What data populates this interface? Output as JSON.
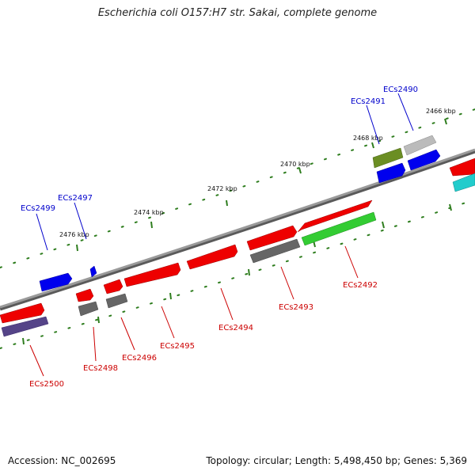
{
  "title": "Escherichia coli O157:H7 str. Sakai, complete genome",
  "footer": {
    "accession_label": "Accession:",
    "accession": "NC_002695",
    "topology_label": "Topology:",
    "topology": "circular",
    "length_label": "Length:",
    "length": "5,498,450 bp",
    "genes_label": "Genes:",
    "genes": "5,369"
  },
  "scale_labels": [
    "2466 kbp",
    "2468 kbp",
    "2470 kbp",
    "2472 kbp",
    "2474 kbp",
    "2476 kbp"
  ],
  "forward_gene_labels": [
    "ECs2490",
    "ECs2491",
    "ECs2497",
    "ECs2499"
  ],
  "reverse_gene_labels": [
    "ECs2492",
    "ECs2493",
    "ECs2494",
    "ECs2495",
    "ECs2496",
    "ECs2498",
    "ECs2500"
  ],
  "colors": {
    "backbone": "#888888",
    "scale_ticks": "#2e7d1e",
    "forward_label": "#0000cc",
    "reverse_label": "#cc0000",
    "cds_red": "#ee0000",
    "cds_blue": "#0000ee",
    "cds_grey": "#666666",
    "cds_light_grey": "#bbbbbb",
    "cds_olive": "#6b8e23",
    "cds_green": "#33cc33",
    "cds_purple": "#554488",
    "cds_cyan": "#22cccc"
  },
  "legend_text": {}
}
